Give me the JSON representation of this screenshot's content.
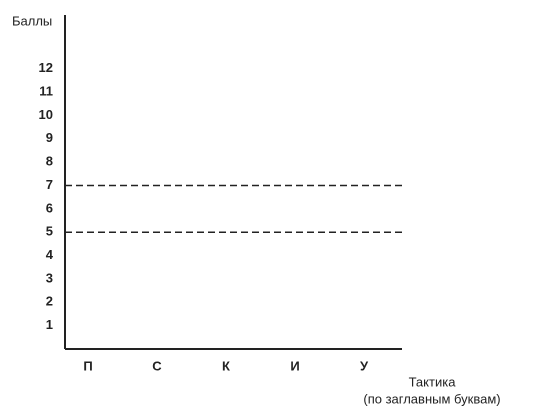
{
  "chart_data": {
    "type": "bar",
    "ylabel": "Баллы",
    "xlabel": [
      "Тактика",
      "(по заглавным буквам)"
    ],
    "categories": [
      "П",
      "С",
      "К",
      "И",
      "У"
    ],
    "ylim": [
      0,
      14.3
    ],
    "yticks": [
      1,
      2,
      3,
      4,
      5,
      6,
      7,
      8,
      9,
      10,
      11,
      12
    ],
    "hlines": [
      7,
      5
    ],
    "color": "#222222"
  }
}
